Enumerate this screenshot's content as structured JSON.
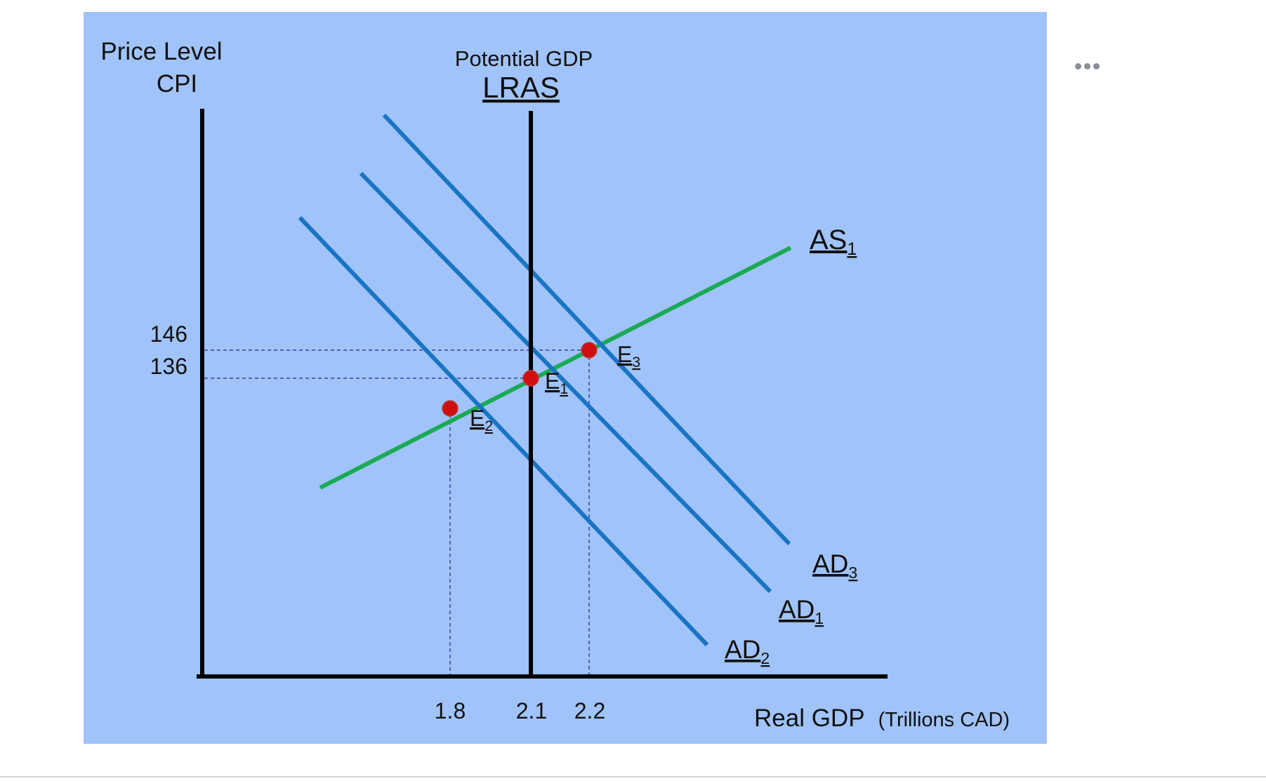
{
  "chart_data": {
    "type": "line",
    "y_axis_title": [
      "Price Level",
      "CPI"
    ],
    "x_axis_title": "Real GDP",
    "x_axis_unit": "(Trillions CAD)",
    "lras_caption": "Potential GDP",
    "lras_label": "LRAS",
    "x_ticks": [
      "1.8",
      "2.1",
      "2.2"
    ],
    "y_ticks": [
      "146",
      "136"
    ],
    "lras_x": 2.1,
    "equilibria": [
      {
        "name": "E",
        "sub": "1",
        "x": 2.1,
        "y": 136
      },
      {
        "name": "E",
        "sub": "2",
        "x": 1.8,
        "y": 130
      },
      {
        "name": "E",
        "sub": "3",
        "x": 2.2,
        "y": 146
      }
    ],
    "curves": [
      {
        "name": "AS",
        "sub": "1",
        "kind": "supply",
        "color": "#1aaa55"
      },
      {
        "name": "AD",
        "sub": "1",
        "kind": "demand",
        "color": "#1a74c4"
      },
      {
        "name": "AD",
        "sub": "2",
        "kind": "demand",
        "color": "#1a74c4"
      },
      {
        "name": "AD",
        "sub": "3",
        "kind": "demand",
        "color": "#1a74c4"
      }
    ]
  },
  "colors": {
    "panel_background": "#a0c3f9",
    "ad_curve": "#1a74c4",
    "as_curve": "#1aaa55",
    "equilibrium_point": "#d01010",
    "axis": "#000000"
  },
  "more_menu_icon": "more-options-icon"
}
